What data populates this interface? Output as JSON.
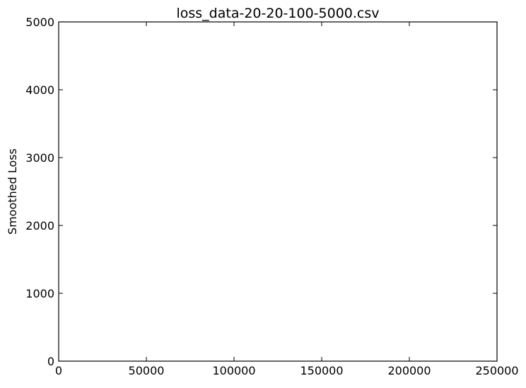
{
  "chart_data": {
    "type": "line",
    "title": "loss_data-20-20-100-5000.csv",
    "xlabel": "",
    "ylabel": "Smoothed Loss",
    "xlim": [
      0,
      250000
    ],
    "ylim": [
      0,
      5000
    ],
    "x_ticks": [
      0,
      50000,
      100000,
      150000,
      200000,
      250000
    ],
    "y_ticks": [
      0,
      1000,
      2000,
      3000,
      4000,
      5000
    ],
    "x_tick_labels": [
      "0",
      "50000",
      "100000",
      "150000",
      "200000",
      "250000"
    ],
    "y_tick_labels": [
      "0",
      "1000",
      "2000",
      "3000",
      "4000",
      "5000"
    ],
    "grid": false,
    "series": []
  },
  "colors": {
    "axes": "#000000",
    "background": "#ffffff"
  }
}
